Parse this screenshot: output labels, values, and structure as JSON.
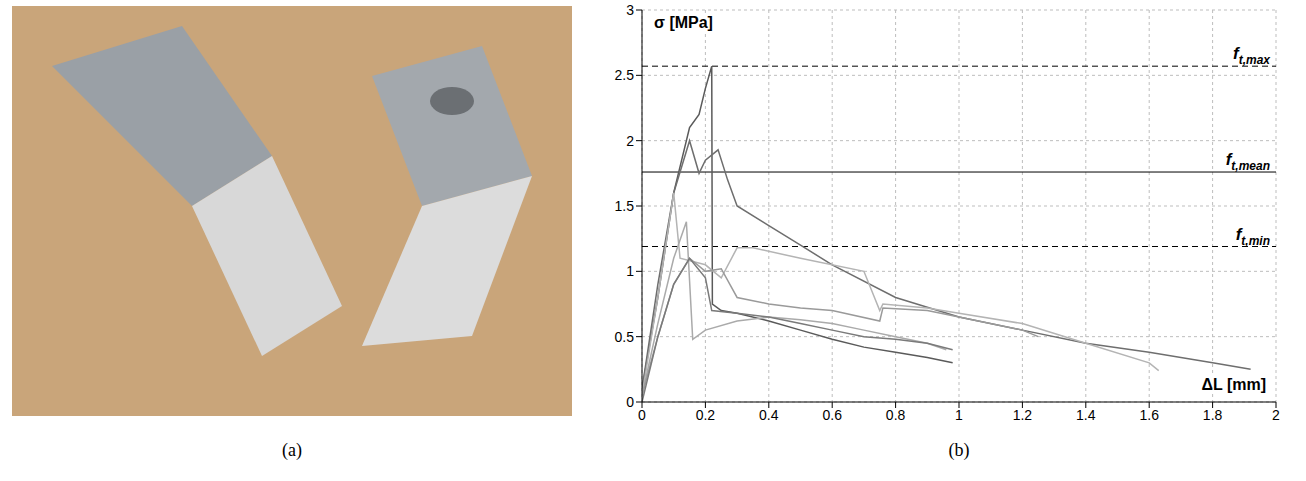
{
  "photo": {
    "label": "(a)"
  },
  "chart_data": {
    "type": "line",
    "panel_label": "(b)",
    "y_label": "σ [MPa]",
    "x_label": "ΔL [mm]",
    "xlim": [
      0,
      2
    ],
    "xticks": [
      0,
      0.2,
      0.4,
      0.6,
      0.8,
      1,
      1.2,
      1.4,
      1.6,
      1.8,
      2
    ],
    "ylim": [
      0,
      3
    ],
    "yticks": [
      0,
      0.5,
      1,
      1.5,
      2,
      2.5,
      3
    ],
    "grid": true,
    "annotations": [
      {
        "text": "f",
        "subscript": "t,max",
        "y": 2.57,
        "line_style": "dashed"
      },
      {
        "text": "f",
        "subscript": "t,mean",
        "y": 1.76,
        "line_style": "solid"
      },
      {
        "text": "f",
        "subscript": "t,min",
        "y": 1.19,
        "line_style": "dashed"
      }
    ],
    "series": [
      {
        "color": "#5a5a5a",
        "x": [
          0,
          0.05,
          0.1,
          0.15,
          0.18,
          0.2,
          0.22,
          0.222,
          0.25,
          0.3,
          0.4,
          0.5,
          0.6,
          0.7,
          0.8,
          0.9,
          0.98
        ],
        "values": [
          0.1,
          0.8,
          1.6,
          2.1,
          2.2,
          2.4,
          2.57,
          0.75,
          0.7,
          0.68,
          0.62,
          0.55,
          0.48,
          0.42,
          0.38,
          0.34,
          0.3
        ]
      },
      {
        "color": "#6e6e6e",
        "x": [
          0,
          0.05,
          0.1,
          0.15,
          0.18,
          0.2,
          0.24,
          0.27,
          0.3,
          0.4,
          0.5,
          0.6,
          0.8,
          1.0,
          1.2,
          1.4,
          1.6,
          1.8,
          1.92
        ],
        "values": [
          0.1,
          0.9,
          1.6,
          2.0,
          1.75,
          1.85,
          1.93,
          1.7,
          1.5,
          1.35,
          1.2,
          1.05,
          0.8,
          0.65,
          0.55,
          0.45,
          0.38,
          0.3,
          0.25
        ]
      },
      {
        "color": "#b4b4b4",
        "x": [
          0,
          0.05,
          0.1,
          0.12,
          0.2,
          0.25,
          0.3,
          0.35,
          0.5,
          0.7,
          0.75,
          0.76,
          0.9,
          1.0,
          1.2,
          1.4,
          1.6,
          1.63
        ],
        "values": [
          0.05,
          0.8,
          1.6,
          1.1,
          1.05,
          0.95,
          1.18,
          1.18,
          1.1,
          1.0,
          0.7,
          0.75,
          0.72,
          0.68,
          0.6,
          0.45,
          0.3,
          0.24
        ]
      },
      {
        "color": "#aaaaaa",
        "x": [
          0,
          0.05,
          0.1,
          0.14,
          0.16,
          0.2,
          0.3,
          0.4,
          0.5,
          0.6,
          0.7,
          0.8,
          0.9,
          0.96
        ],
        "values": [
          0.05,
          0.6,
          1.1,
          1.38,
          0.48,
          0.55,
          0.62,
          0.65,
          0.63,
          0.6,
          0.55,
          0.5,
          0.45,
          0.4
        ]
      },
      {
        "color": "#9a9a9a",
        "x": [
          0,
          0.05,
          0.1,
          0.15,
          0.2,
          0.25,
          0.3,
          0.4,
          0.5,
          0.6,
          0.75,
          0.76,
          0.9,
          1.0,
          1.2,
          1.25
        ],
        "values": [
          0.05,
          0.5,
          0.9,
          1.1,
          1.0,
          1.02,
          0.8,
          0.75,
          0.72,
          0.7,
          0.62,
          0.72,
          0.7,
          0.65,
          0.55,
          0.5
        ]
      },
      {
        "color": "#7a7a7a",
        "x": [
          0,
          0.05,
          0.1,
          0.15,
          0.2,
          0.22,
          0.3,
          0.4,
          0.5,
          0.6,
          0.7,
          0.8,
          0.9,
          0.98
        ],
        "values": [
          0,
          0.5,
          0.9,
          1.1,
          0.95,
          0.7,
          0.68,
          0.65,
          0.6,
          0.55,
          0.5,
          0.48,
          0.45,
          0.4
        ]
      }
    ]
  }
}
